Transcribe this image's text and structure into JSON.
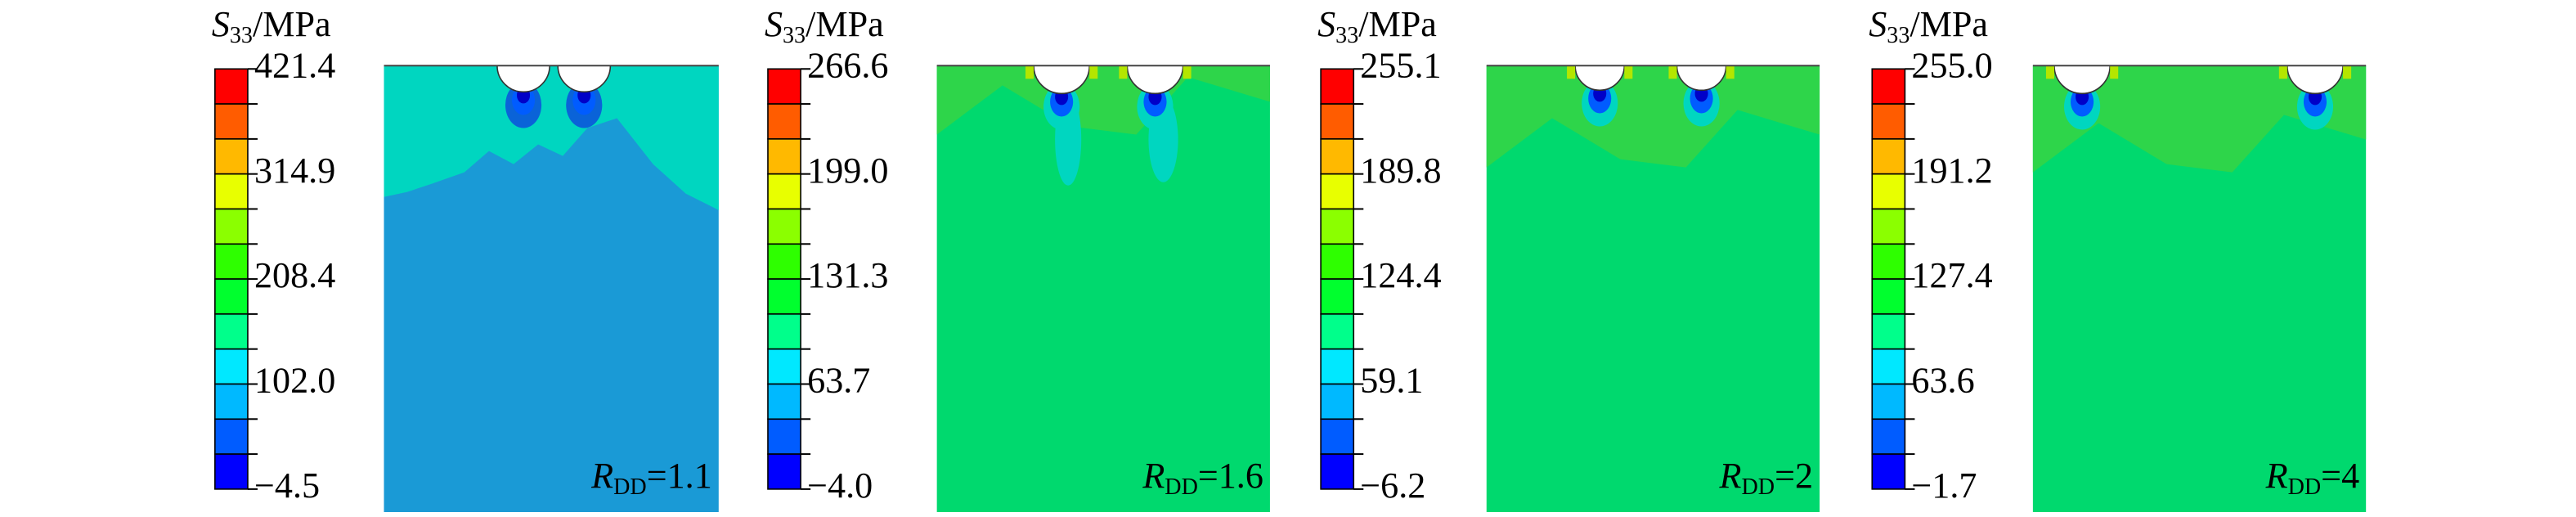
{
  "panels": [
    {
      "colorbar_title": {
        "symbol": "S",
        "subscript": "33",
        "unit": "/MPa"
      },
      "ticks": [
        "421.4",
        "314.9",
        "208.4",
        "102.0",
        "−4.5"
      ],
      "label": {
        "symbol": "R",
        "subscript": "DD",
        "value": "=1.1"
      }
    },
    {
      "colorbar_title": {
        "symbol": "S",
        "subscript": "33",
        "unit": "/MPa"
      },
      "ticks": [
        "266.6",
        "199.0",
        "131.3",
        "63.7",
        "−4.0"
      ],
      "label": {
        "symbol": "R",
        "subscript": "DD",
        "value": "=1.6"
      }
    },
    {
      "colorbar_title": {
        "symbol": "S",
        "subscript": "33",
        "unit": "/MPa"
      },
      "ticks": [
        "255.1",
        "189.8",
        "124.4",
        "59.1",
        "−6.2"
      ],
      "label": {
        "symbol": "R",
        "subscript": "DD",
        "value": "=2"
      }
    },
    {
      "colorbar_title": {
        "symbol": "S",
        "subscript": "33",
        "unit": "/MPa"
      },
      "ticks": [
        "255.0",
        "191.2",
        "127.4",
        "63.6",
        "−1.7"
      ],
      "label": {
        "symbol": "R",
        "subscript": "DD",
        "value": "=4"
      }
    }
  ]
}
